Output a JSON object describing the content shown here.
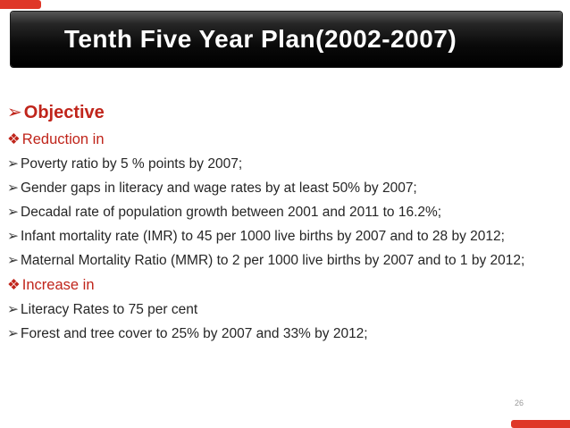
{
  "title_bar": {
    "title": "Tenth Five Year Plan(2002-2007)"
  },
  "content": {
    "lines": [
      {
        "bullet": "➢",
        "text": "Objective",
        "variant": "heading"
      },
      {
        "bullet": "❖",
        "text": "Reduction in",
        "variant": "subheading"
      },
      {
        "bullet": "➢",
        "text": "Poverty ratio by 5 % points by 2007;",
        "variant": "item"
      },
      {
        "bullet": "➢",
        "text": "Gender gaps in literacy and wage rates by at least 50% by 2007;",
        "variant": "item"
      },
      {
        "bullet": "➢",
        "text": "Decadal rate of population growth between 2001 and 2011 to 16.2%;",
        "variant": "item"
      },
      {
        "bullet": "➢",
        "text": "Infant mortality rate (IMR) to 45 per 1000 live births by 2007 and to 28 by 2012;",
        "variant": "item"
      },
      {
        "bullet": "➢",
        "text": "Maternal Mortality Ratio (MMR) to 2 per 1000 live births by 2007 and to 1 by 2012;",
        "variant": "item"
      },
      {
        "bullet": "❖",
        "text": "Increase in",
        "variant": "subheading"
      },
      {
        "bullet": "➢",
        "text": "Literacy Rates to 75 per cent",
        "variant": "item"
      },
      {
        "bullet": "➢",
        "text": "Forest and tree cover to 25% by 2007 and 33% by 2012;",
        "variant": "item"
      }
    ]
  },
  "footer": {
    "page_number": "26"
  },
  "colors": {
    "accent_red_text": "#c0251b",
    "corner_bar_red": "#df3728",
    "title_bar_black": "#000000",
    "title_text": "#ffffff",
    "body_text": "#262626",
    "page_number_gray": "#999999"
  }
}
